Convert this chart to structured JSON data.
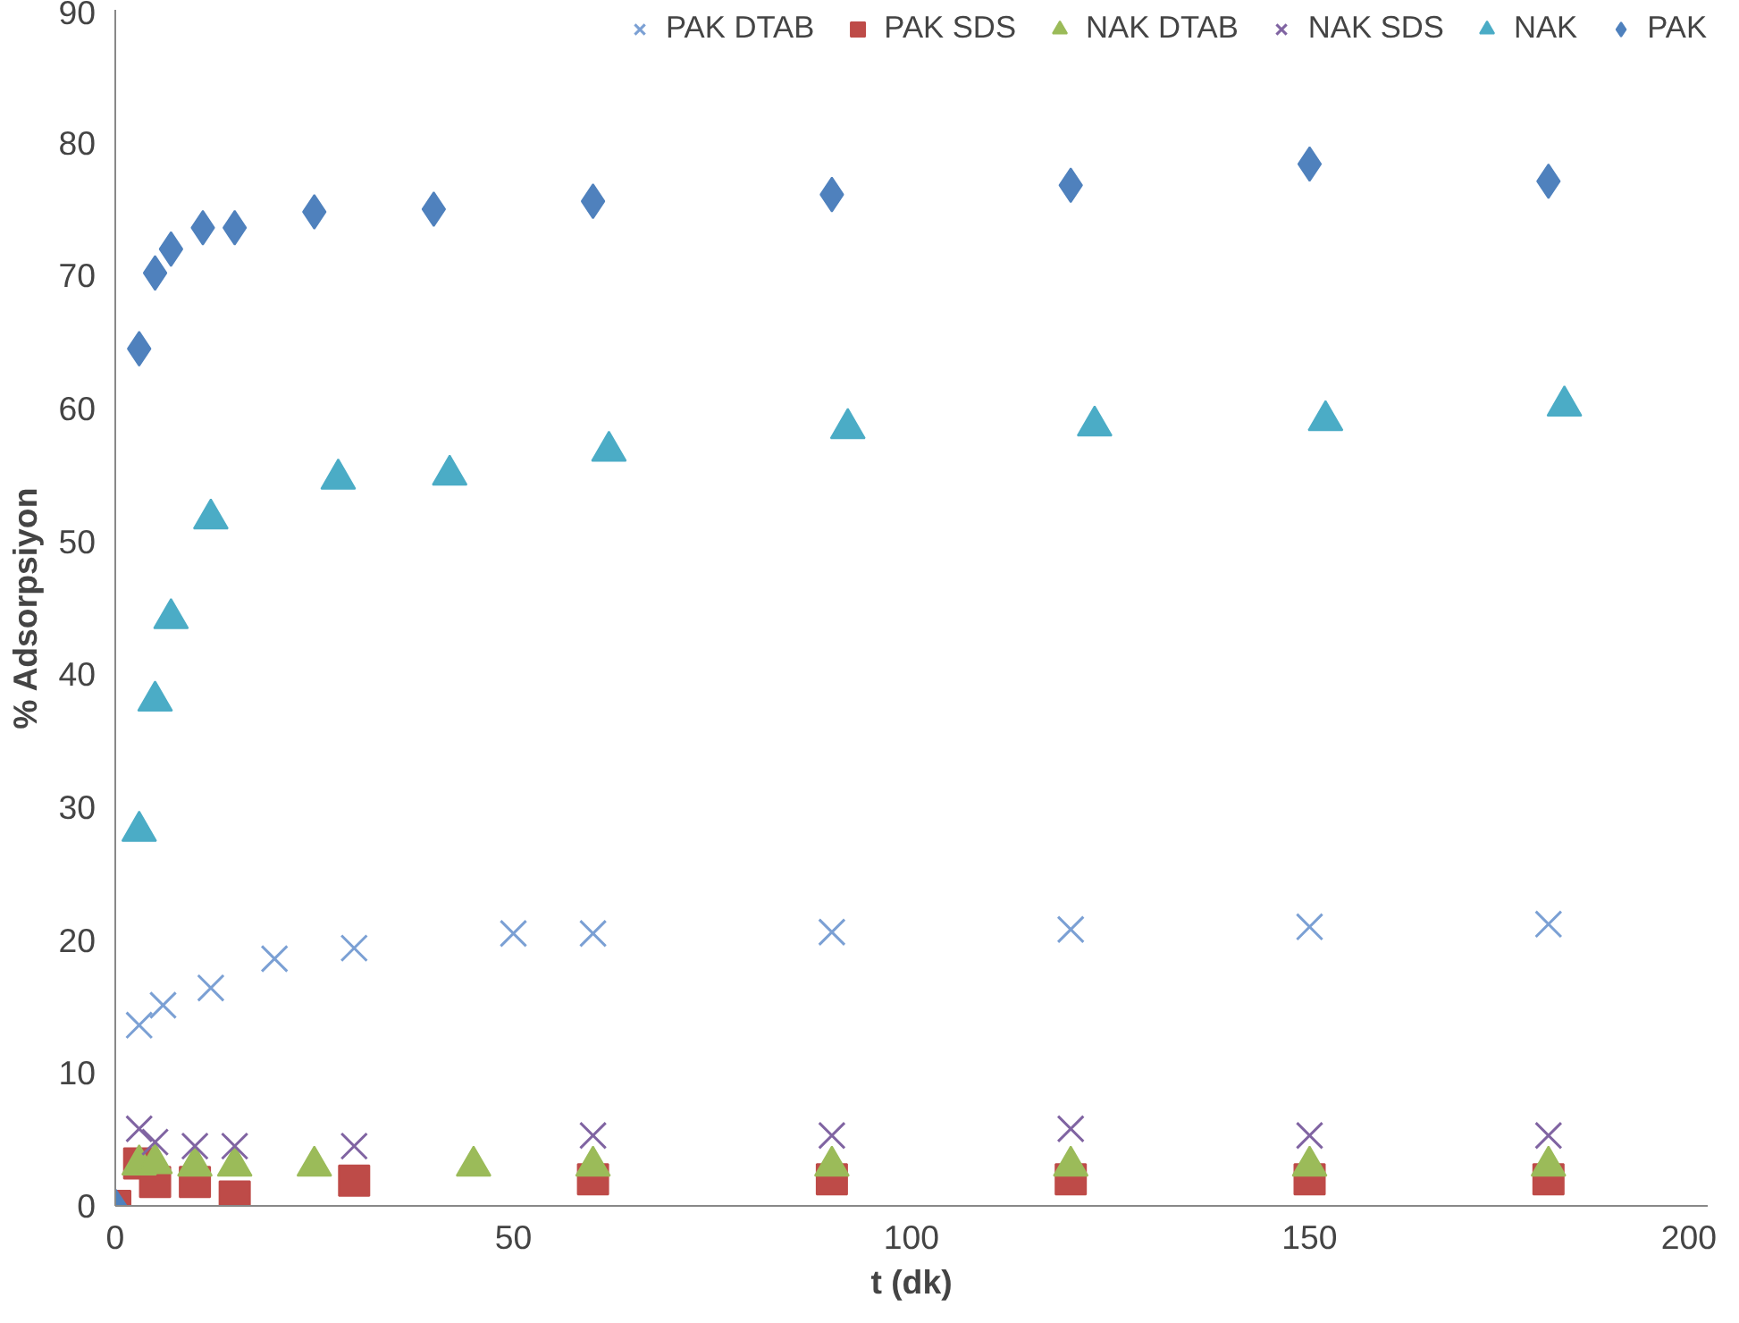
{
  "chart_data": {
    "type": "scatter",
    "xlabel": "t (dk)",
    "ylabel": "% Adsorpsiyon",
    "xlim": [
      0,
      200
    ],
    "ylim": [
      0,
      90
    ],
    "xticks": [
      0,
      50,
      100,
      150,
      200
    ],
    "yticks": [
      0,
      10,
      20,
      30,
      40,
      50,
      60,
      70,
      80,
      90
    ],
    "grid": false,
    "legend": "top",
    "series": [
      {
        "name": "PAK DTAB",
        "color": "#7ba0d4",
        "marker": "cross",
        "x": [
          3,
          6,
          12,
          20,
          30,
          50,
          60,
          90,
          120,
          150,
          180
        ],
        "values": [
          13.6,
          15.1,
          16.4,
          18.6,
          19.4,
          20.5,
          20.5,
          20.6,
          20.8,
          21.0,
          21.2
        ]
      },
      {
        "name": "PAK SDS",
        "color": "#be4b48",
        "marker": "square",
        "x": [
          0,
          3,
          5,
          10,
          15,
          30,
          60,
          90,
          120,
          150,
          180
        ],
        "values": [
          0,
          3.2,
          1.8,
          1.8,
          0.7,
          1.9,
          2.0,
          2.0,
          2.0,
          2.0,
          2.0
        ]
      },
      {
        "name": "NAK DTAB",
        "color": "#9bbb59",
        "marker": "triangle",
        "x": [
          3,
          5,
          10,
          15,
          25,
          45,
          60,
          90,
          120,
          150,
          180
        ],
        "values": [
          3.1,
          3.2,
          3.0,
          3.0,
          3.0,
          3.0,
          3.0,
          3.0,
          3.0,
          3.0,
          3.0
        ]
      },
      {
        "name": "NAK SDS",
        "color": "#8064a2",
        "marker": "cross",
        "x": [
          3,
          5,
          10,
          15,
          30,
          60,
          90,
          120,
          150,
          180
        ],
        "values": [
          5.8,
          4.8,
          4.5,
          4.5,
          4.5,
          5.3,
          5.3,
          5.8,
          5.3,
          5.3
        ]
      },
      {
        "name": "NAK",
        "color": "#4bacc6",
        "marker": "triangle",
        "x": [
          3,
          5,
          7,
          12,
          28,
          42,
          62,
          92,
          123,
          152,
          182
        ],
        "values": [
          28.2,
          38,
          44.2,
          51.7,
          54.7,
          55,
          56.8,
          58.5,
          58.7,
          59.1,
          60.2
        ]
      },
      {
        "name": "PAK",
        "color": "#4f81bd",
        "marker": "diamond",
        "x": [
          0,
          3,
          5,
          7,
          11,
          15,
          25,
          40,
          60,
          90,
          120,
          150,
          180
        ],
        "values": [
          0,
          64.5,
          70.2,
          72,
          73.6,
          73.6,
          74.8,
          75,
          75.6,
          76.1,
          76.8,
          78.4,
          77.1
        ]
      }
    ]
  }
}
